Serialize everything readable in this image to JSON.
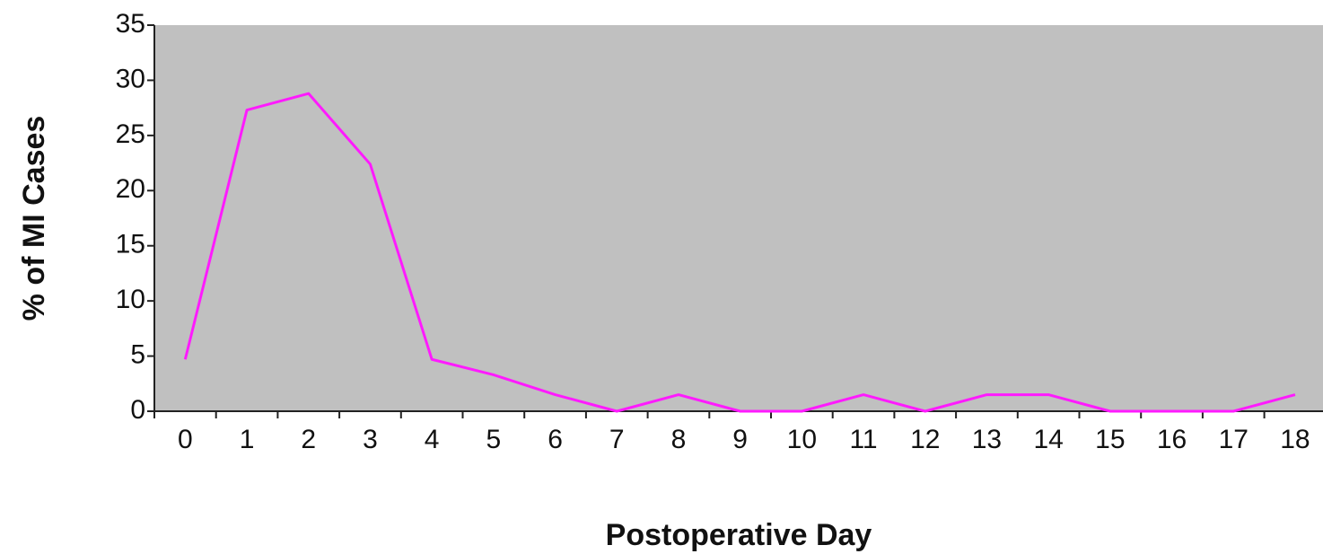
{
  "chart_data": {
    "type": "line",
    "x_label": "Postoperative Day",
    "y_label": "% of MI Cases",
    "categories": [
      "0",
      "1",
      "2",
      "3",
      "4",
      "5",
      "6",
      "7",
      "8",
      "9",
      "10",
      "11",
      "12",
      "13",
      "14",
      "15",
      "16",
      "17",
      "18"
    ],
    "values": [
      4.7,
      27.3,
      28.8,
      22.4,
      4.7,
      3.3,
      1.5,
      0,
      1.5,
      0,
      0,
      1.5,
      0,
      1.5,
      1.5,
      0,
      0,
      0,
      1.5
    ],
    "color": "#ff1aff",
    "ylim": [
      0,
      35
    ],
    "yticks": [
      0,
      5,
      10,
      15,
      20,
      25,
      30,
      35
    ],
    "plot_background": "#c0c0c0"
  }
}
